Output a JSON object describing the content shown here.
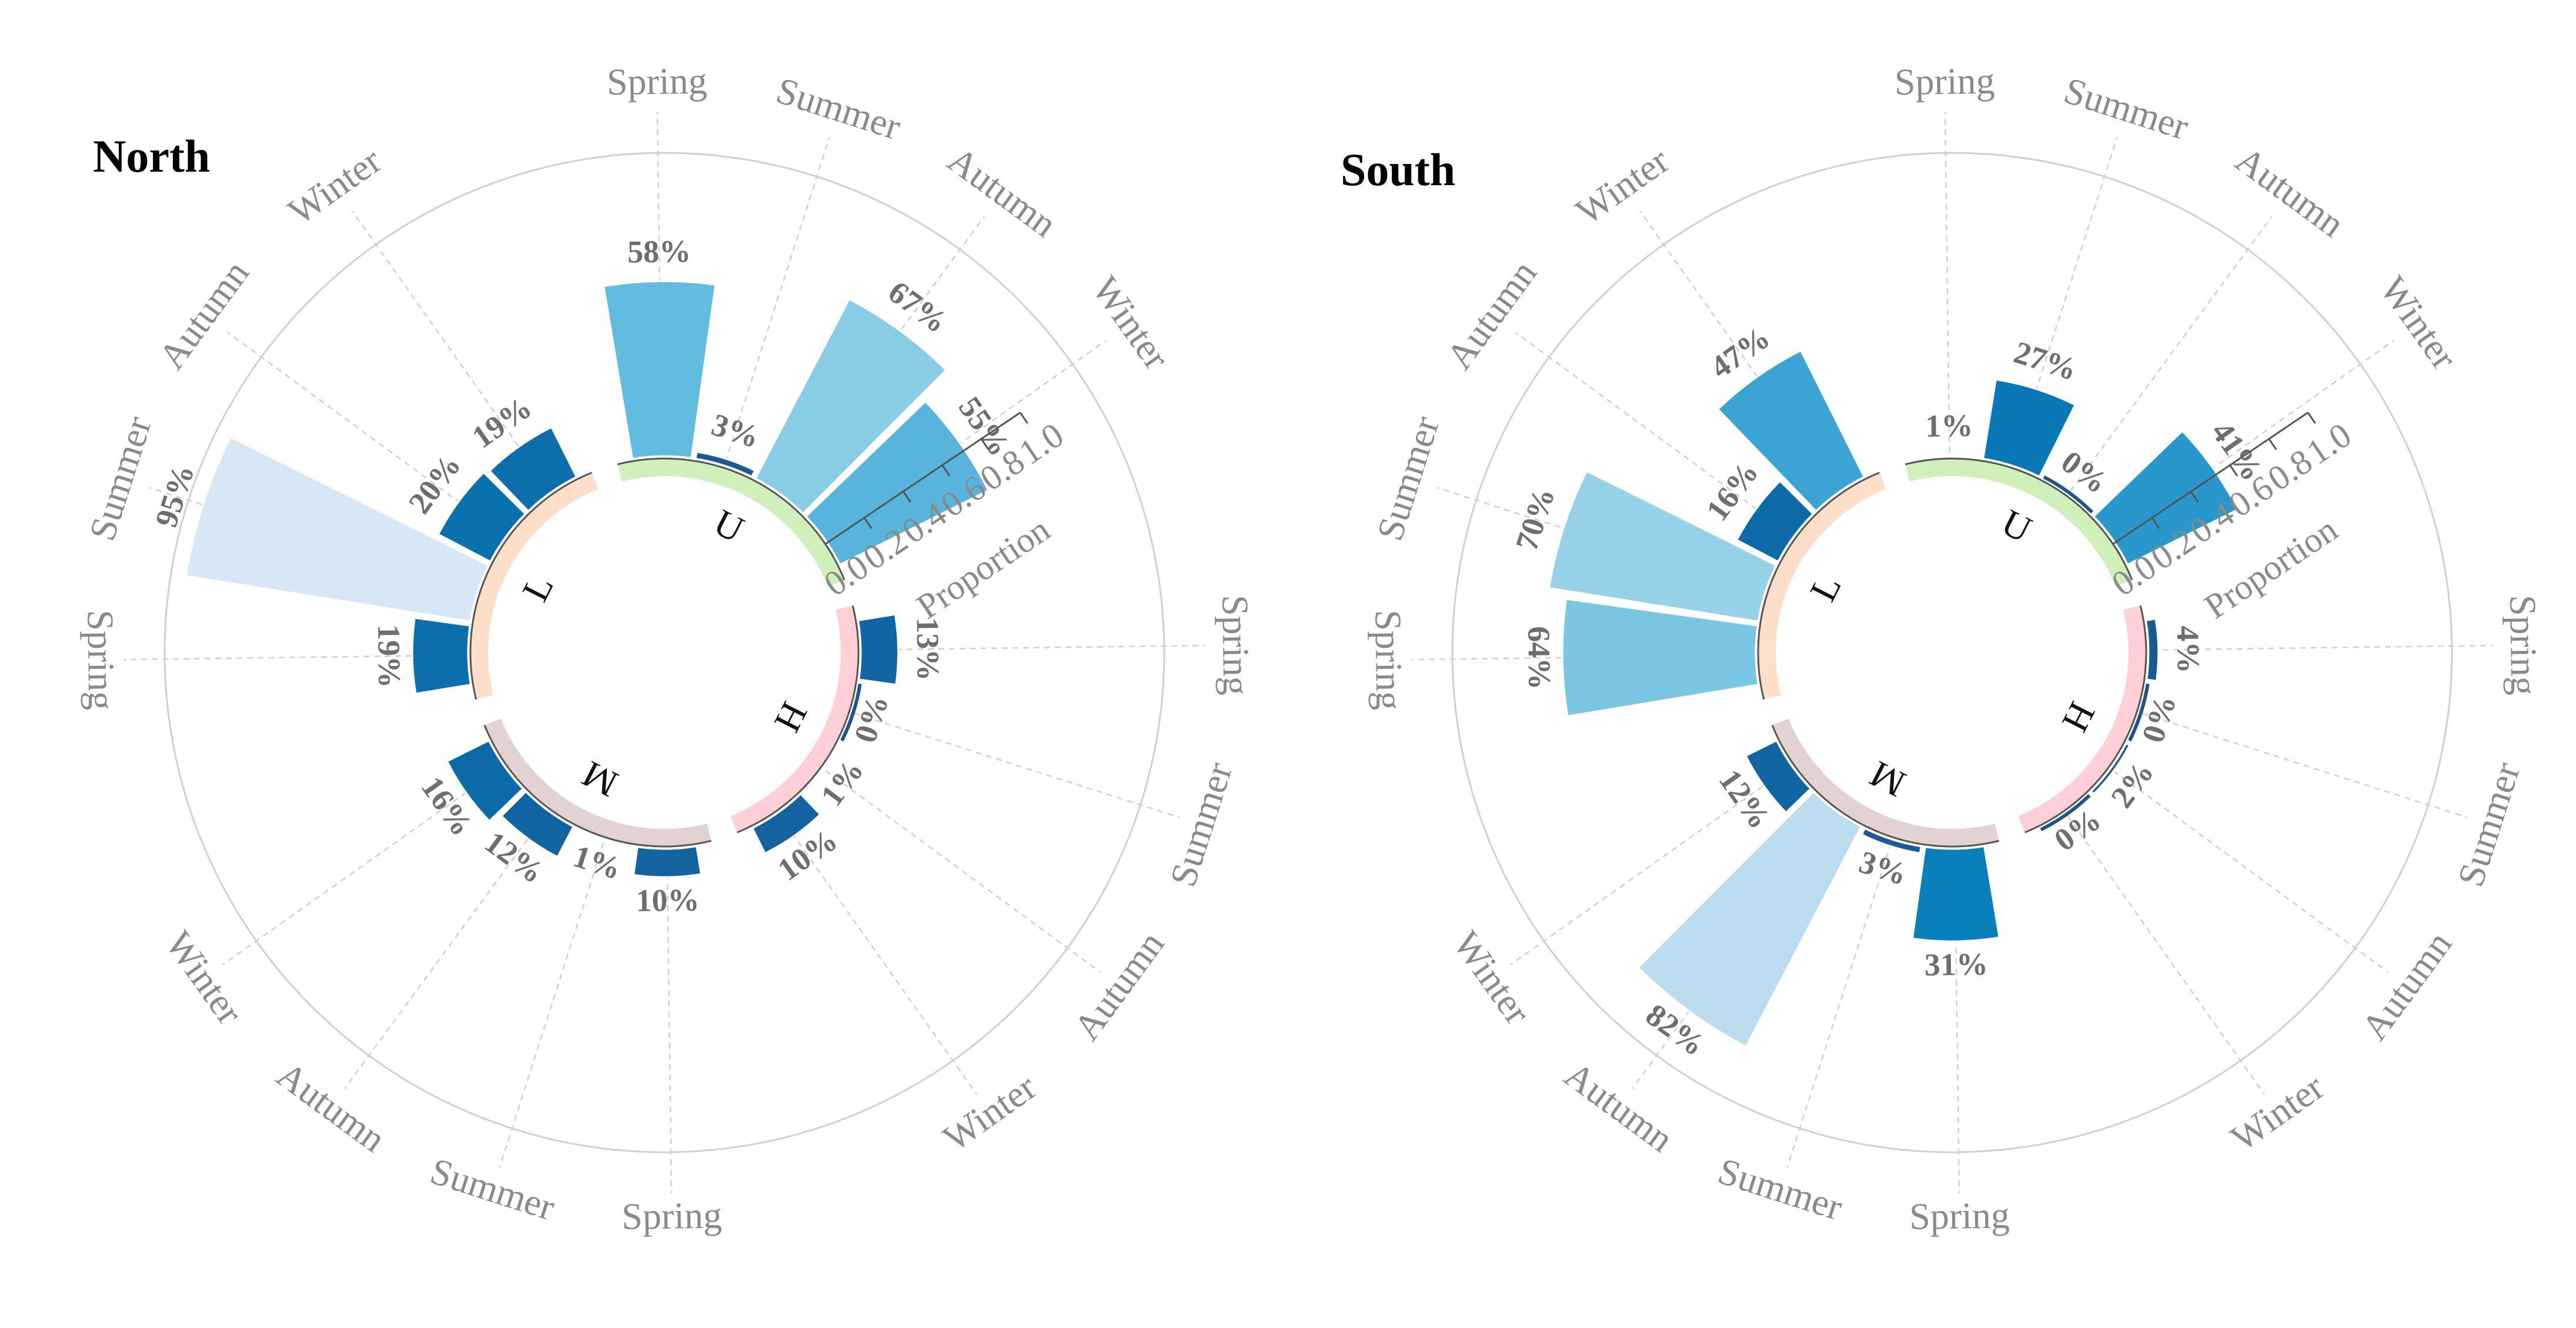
{
  "chart_data": [
    {
      "type": "radial-bar",
      "title": "North",
      "axis_title": "Proportion",
      "ylim": [
        0,
        1
      ],
      "ticks": [
        "0.0",
        "0.2",
        "0.4",
        "0.6",
        "0.8",
        "1.0"
      ],
      "groups": [
        {
          "letter": "U",
          "color": "#c9ecae",
          "bars": [
            {
              "season": "Spring",
              "value": 0.58,
              "label": "58%"
            },
            {
              "season": "Summer",
              "value": 0.03,
              "label": "3%"
            },
            {
              "season": "Autumn",
              "value": 0.67,
              "label": "67%"
            },
            {
              "season": "Winter",
              "value": 0.55,
              "label": "55%"
            }
          ]
        },
        {
          "letter": "L",
          "color": "#fdd9bf",
          "bars": [
            {
              "season": "Spring",
              "value": 0.19,
              "label": "19%"
            },
            {
              "season": "Summer",
              "value": 0.95,
              "label": "95%"
            },
            {
              "season": "Autumn",
              "value": 0.2,
              "label": "20%"
            },
            {
              "season": "Winter",
              "value": 0.19,
              "label": "19%"
            }
          ]
        },
        {
          "letter": "M",
          "color": "#ddcaca",
          "bars": [
            {
              "season": "Spring",
              "value": 0.1,
              "label": "10%"
            },
            {
              "season": "Summer",
              "value": 0.01,
              "label": "1%"
            },
            {
              "season": "Autumn",
              "value": 0.12,
              "label": "12%"
            },
            {
              "season": "Winter",
              "value": 0.16,
              "label": "16%"
            }
          ]
        },
        {
          "letter": "H",
          "color": "#fbc8cc",
          "bars": [
            {
              "season": "Spring",
              "value": 0.13,
              "label": "13%"
            },
            {
              "season": "Summer",
              "value": 0.0,
              "label": "0%"
            },
            {
              "season": "Autumn",
              "value": 0.01,
              "label": "1%"
            },
            {
              "season": "Winter",
              "value": 0.1,
              "label": "10%"
            }
          ]
        }
      ]
    },
    {
      "type": "radial-bar",
      "title": "South",
      "axis_title": "Proportion",
      "ylim": [
        0,
        1
      ],
      "ticks": [
        "0.0",
        "0.2",
        "0.4",
        "0.6",
        "0.8",
        "1.0"
      ],
      "groups": [
        {
          "letter": "U",
          "color": "#c9ecae",
          "bars": [
            {
              "season": "Spring",
              "value": 0.01,
              "label": "1%"
            },
            {
              "season": "Summer",
              "value": 0.27,
              "label": "27%"
            },
            {
              "season": "Autumn",
              "value": 0.0,
              "label": "0%"
            },
            {
              "season": "Winter",
              "value": 0.41,
              "label": "41%"
            }
          ]
        },
        {
          "letter": "L",
          "color": "#fdd9bf",
          "bars": [
            {
              "season": "Spring",
              "value": 0.64,
              "label": "64%"
            },
            {
              "season": "Summer",
              "value": 0.7,
              "label": "70%"
            },
            {
              "season": "Autumn",
              "value": 0.16,
              "label": "16%"
            },
            {
              "season": "Winter",
              "value": 0.47,
              "label": "47%"
            }
          ]
        },
        {
          "letter": "M",
          "color": "#ddcaca",
          "bars": [
            {
              "season": "Spring",
              "value": 0.31,
              "label": "31%"
            },
            {
              "season": "Summer",
              "value": 0.03,
              "label": "3%"
            },
            {
              "season": "Autumn",
              "value": 0.82,
              "label": "82%"
            },
            {
              "season": "Winter",
              "value": 0.12,
              "label": "12%"
            }
          ]
        },
        {
          "letter": "H",
          "color": "#fbc8cc",
          "bars": [
            {
              "season": "Spring",
              "value": 0.04,
              "label": "4%"
            },
            {
              "season": "Summer",
              "value": 0.0,
              "label": "0%"
            },
            {
              "season": "Autumn",
              "value": 0.02,
              "label": "2%"
            },
            {
              "season": "Winter",
              "value": 0.0,
              "label": "0%"
            }
          ]
        }
      ]
    }
  ]
}
